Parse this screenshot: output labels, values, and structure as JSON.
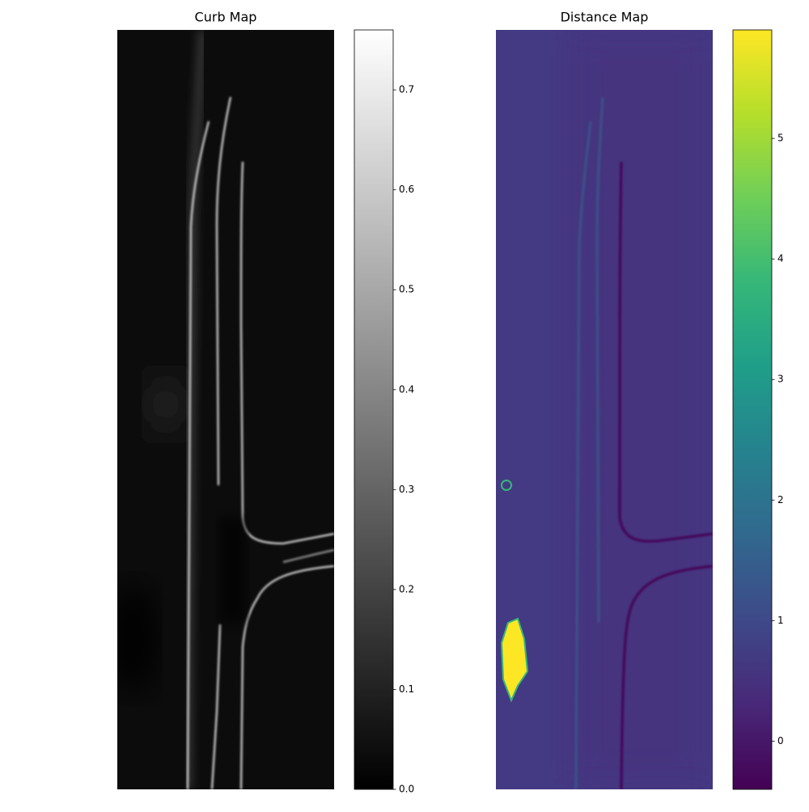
{
  "chart_data": [
    {
      "type": "heatmap",
      "title": "Curb Map",
      "colormap": "gray",
      "clim": [
        0,
        0.76
      ],
      "ticks": [
        {
          "value": 0,
          "label": "0.0"
        },
        0.1,
        0.2,
        0.3,
        0.4,
        0.5,
        0.6,
        0.7
      ]
    },
    {
      "type": "heatmap",
      "title": "Distance Map",
      "colormap": "viridis",
      "clim": [
        -0.4,
        5.9
      ],
      "ticks": [
        0,
        1,
        2,
        3,
        4,
        5
      ]
    }
  ]
}
